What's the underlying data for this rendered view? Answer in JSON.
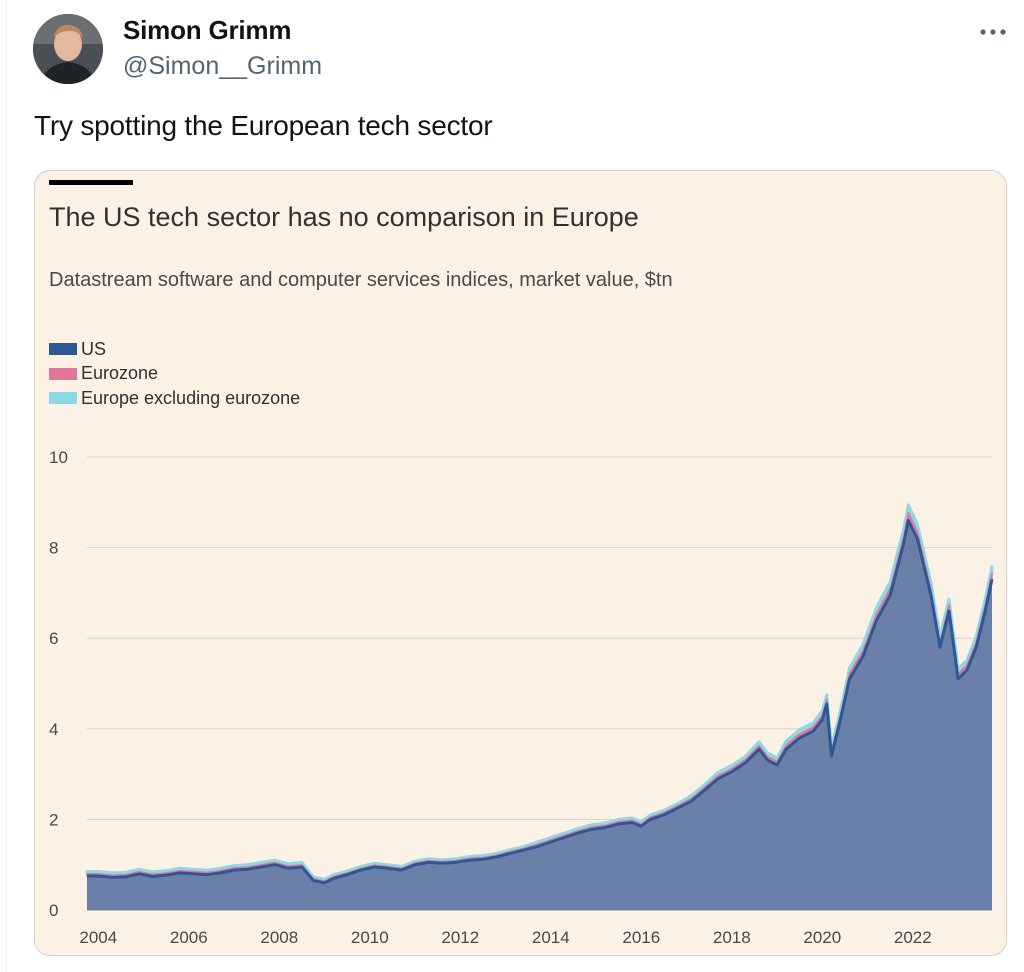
{
  "tweet": {
    "display_name": "Simon Grimm",
    "handle": "@Simon__Grimm",
    "text": "Try spotting the European tech sector",
    "more_icon": "more-horizontal-icon",
    "avatar_icon": "avatar"
  },
  "colors": {
    "card_bg": "#fcf1e5",
    "us": "#2e5796",
    "us_fill": "#6a80a9",
    "eurozone": "#e0779a",
    "europe_ex": "#8dd8e6",
    "grid": "#d9d2c9",
    "tick": "#4d4845"
  },
  "chart_data": {
    "type": "area",
    "title": "The US tech sector has no comparison in Europe",
    "subtitle": "Datastream software and computer services indices, market value, $tn",
    "xlabel": "",
    "ylabel": "",
    "ylim": [
      0,
      10
    ],
    "yticks": [
      "0",
      "2",
      "4",
      "6",
      "8",
      "10"
    ],
    "xticks": [
      "2004",
      "2006",
      "2008",
      "2010",
      "2012",
      "2014",
      "2016",
      "2018",
      "2020",
      "2022"
    ],
    "xlim": [
      2003.75,
      2023.75
    ],
    "stacked": true,
    "legend": [
      "US",
      "Eurozone",
      "Europe excluding eurozone"
    ],
    "x": [
      2003.75,
      2004.0,
      2004.3,
      2004.6,
      2004.9,
      2005.2,
      2005.5,
      2005.8,
      2006.1,
      2006.4,
      2006.7,
      2007.0,
      2007.3,
      2007.6,
      2007.9,
      2008.2,
      2008.5,
      2008.75,
      2009.0,
      2009.2,
      2009.5,
      2009.8,
      2010.1,
      2010.4,
      2010.7,
      2011.0,
      2011.3,
      2011.6,
      2011.9,
      2012.2,
      2012.5,
      2012.8,
      2013.1,
      2013.4,
      2013.7,
      2014.0,
      2014.3,
      2014.6,
      2014.9,
      2015.2,
      2015.5,
      2015.8,
      2016.0,
      2016.2,
      2016.5,
      2016.8,
      2017.1,
      2017.4,
      2017.7,
      2018.0,
      2018.3,
      2018.6,
      2018.8,
      2019.0,
      2019.2,
      2019.5,
      2019.8,
      2020.0,
      2020.1,
      2020.2,
      2020.4,
      2020.6,
      2020.9,
      2021.2,
      2021.5,
      2021.8,
      2021.9,
      2022.1,
      2022.4,
      2022.6,
      2022.8,
      2023.0,
      2023.2,
      2023.4,
      2023.6,
      2023.75
    ],
    "series": [
      {
        "name": "US",
        "values": [
          0.75,
          0.75,
          0.72,
          0.73,
          0.8,
          0.74,
          0.77,
          0.82,
          0.8,
          0.78,
          0.82,
          0.88,
          0.9,
          0.95,
          1.0,
          0.92,
          0.95,
          0.65,
          0.6,
          0.7,
          0.78,
          0.88,
          0.95,
          0.92,
          0.88,
          1.0,
          1.05,
          1.03,
          1.05,
          1.1,
          1.12,
          1.17,
          1.25,
          1.32,
          1.4,
          1.5,
          1.6,
          1.7,
          1.78,
          1.82,
          1.9,
          1.93,
          1.85,
          2.0,
          2.1,
          2.25,
          2.4,
          2.65,
          2.9,
          3.05,
          3.25,
          3.55,
          3.3,
          3.2,
          3.55,
          3.8,
          3.95,
          4.2,
          4.55,
          3.4,
          4.2,
          5.1,
          5.6,
          6.4,
          6.95,
          8.1,
          8.6,
          8.2,
          6.95,
          5.8,
          6.6,
          5.1,
          5.3,
          5.8,
          6.6,
          7.3
        ]
      },
      {
        "name": "Eurozone",
        "values": [
          0.05,
          0.05,
          0.05,
          0.05,
          0.05,
          0.05,
          0.05,
          0.05,
          0.05,
          0.05,
          0.05,
          0.05,
          0.05,
          0.05,
          0.05,
          0.05,
          0.05,
          0.04,
          0.04,
          0.04,
          0.04,
          0.04,
          0.04,
          0.04,
          0.04,
          0.04,
          0.04,
          0.04,
          0.04,
          0.04,
          0.04,
          0.04,
          0.04,
          0.04,
          0.05,
          0.05,
          0.05,
          0.05,
          0.05,
          0.05,
          0.05,
          0.05,
          0.05,
          0.05,
          0.05,
          0.05,
          0.06,
          0.06,
          0.07,
          0.07,
          0.07,
          0.08,
          0.08,
          0.08,
          0.09,
          0.09,
          0.09,
          0.1,
          0.1,
          0.1,
          0.1,
          0.12,
          0.13,
          0.14,
          0.15,
          0.16,
          0.17,
          0.16,
          0.14,
          0.12,
          0.13,
          0.11,
          0.11,
          0.12,
          0.13,
          0.14
        ]
      },
      {
        "name": "Europe excluding eurozone",
        "values": [
          0.05,
          0.05,
          0.05,
          0.05,
          0.05,
          0.05,
          0.05,
          0.05,
          0.05,
          0.05,
          0.05,
          0.05,
          0.05,
          0.05,
          0.05,
          0.05,
          0.05,
          0.04,
          0.04,
          0.04,
          0.04,
          0.04,
          0.04,
          0.04,
          0.04,
          0.04,
          0.04,
          0.04,
          0.04,
          0.04,
          0.04,
          0.04,
          0.04,
          0.04,
          0.05,
          0.05,
          0.05,
          0.05,
          0.05,
          0.05,
          0.05,
          0.05,
          0.05,
          0.05,
          0.05,
          0.05,
          0.06,
          0.06,
          0.07,
          0.07,
          0.07,
          0.08,
          0.08,
          0.08,
          0.09,
          0.09,
          0.09,
          0.1,
          0.1,
          0.1,
          0.1,
          0.12,
          0.13,
          0.14,
          0.15,
          0.16,
          0.17,
          0.16,
          0.14,
          0.12,
          0.13,
          0.11,
          0.11,
          0.12,
          0.13,
          0.14
        ]
      }
    ]
  }
}
